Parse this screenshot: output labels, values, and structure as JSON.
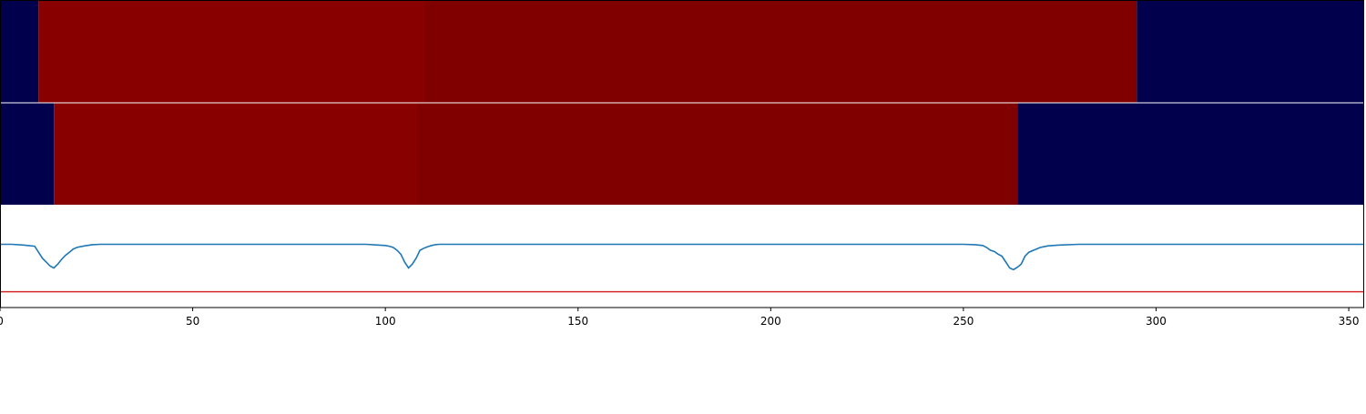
{
  "chart_data": {
    "type": "heatmap",
    "x_range": [
      0,
      354
    ],
    "x_ticks": [
      0,
      50,
      100,
      150,
      200,
      250,
      300,
      350
    ],
    "x_tick_labels": [
      "0",
      "50",
      "100",
      "150",
      "200",
      "250",
      "300",
      "350"
    ],
    "grid": false,
    "legend": "none",
    "heatmap_rows": [
      {
        "segments": [
          {
            "x0": 0,
            "x1": 10,
            "color": "#00004c"
          },
          {
            "x0": 10,
            "x1": 110,
            "color": "#890000"
          },
          {
            "x0": 110,
            "x1": 295,
            "color": "#800000"
          },
          {
            "x0": 295,
            "x1": 354,
            "color": "#00004c"
          }
        ]
      },
      {
        "segments": [
          {
            "x0": 0,
            "x1": 14,
            "color": "#00004c"
          },
          {
            "x0": 14,
            "x1": 108,
            "color": "#890000"
          },
          {
            "x0": 108,
            "x1": 264,
            "color": "#800000"
          },
          {
            "x0": 264,
            "x1": 354,
            "color": "#00004c"
          }
        ]
      }
    ],
    "signal": {
      "color": "#1f77b4",
      "y_range": [
        -1.6,
        1.0
      ],
      "x": [
        0,
        3,
        6,
        9,
        10,
        11,
        12,
        13,
        14,
        15,
        16,
        17,
        18,
        19,
        20,
        22,
        24,
        26,
        30,
        40,
        60,
        80,
        95,
        98,
        100,
        101,
        102,
        103,
        104,
        105,
        106,
        107,
        108,
        109,
        110,
        111,
        112,
        113,
        114,
        116,
        120,
        140,
        170,
        200,
        230,
        250,
        253,
        255,
        256,
        257,
        258,
        259,
        260,
        261,
        262,
        263,
        264,
        265,
        266,
        267,
        268,
        270,
        272,
        275,
        280,
        300,
        354
      ],
      "y": [
        0.0,
        0.0,
        -0.02,
        -0.05,
        -0.2,
        -0.35,
        -0.45,
        -0.55,
        -0.6,
        -0.5,
        -0.38,
        -0.28,
        -0.2,
        -0.12,
        -0.08,
        -0.04,
        -0.01,
        0.0,
        0.0,
        0.0,
        0.0,
        0.0,
        0.0,
        -0.02,
        -0.03,
        -0.05,
        -0.08,
        -0.15,
        -0.25,
        -0.45,
        -0.6,
        -0.5,
        -0.35,
        -0.15,
        -0.1,
        -0.06,
        -0.03,
        -0.01,
        0.0,
        0.0,
        0.0,
        0.0,
        0.0,
        0.0,
        0.0,
        0.0,
        -0.01,
        -0.03,
        -0.08,
        -0.15,
        -0.18,
        -0.25,
        -0.3,
        -0.45,
        -0.6,
        -0.64,
        -0.58,
        -0.5,
        -0.3,
        -0.2,
        -0.16,
        -0.08,
        -0.04,
        -0.02,
        0.0,
        0.0,
        0.0
      ]
    },
    "threshold": {
      "y": -1.2,
      "color": "#d62728"
    }
  }
}
